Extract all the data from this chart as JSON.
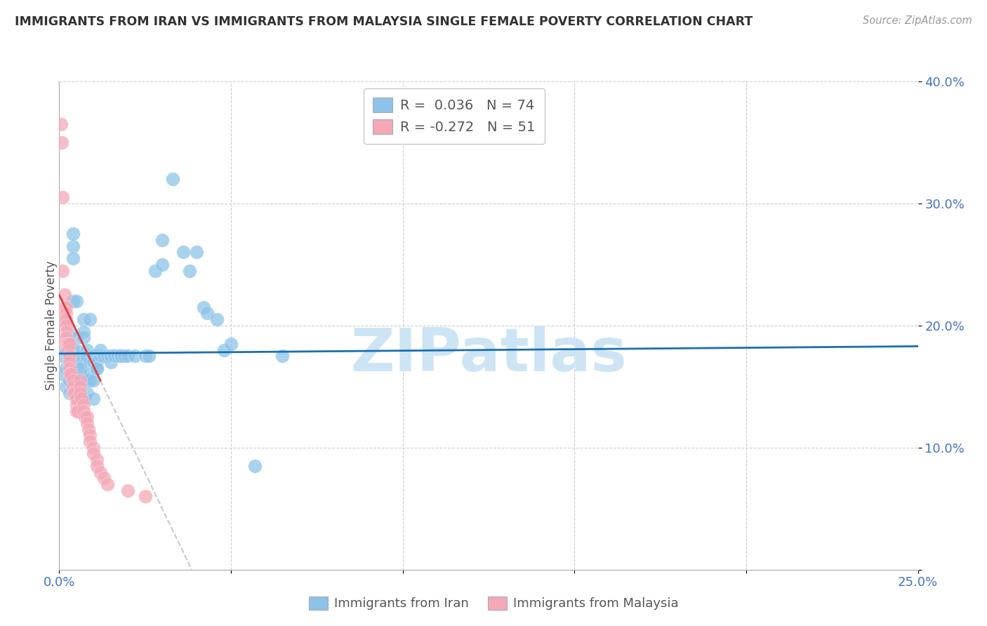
{
  "title": "IMMIGRANTS FROM IRAN VS IMMIGRANTS FROM MALAYSIA SINGLE FEMALE POVERTY CORRELATION CHART",
  "source": "Source: ZipAtlas.com",
  "ylabel_label": "Single Female Poverty",
  "x_label_bottom": "Immigrants from Iran",
  "x_label_bottom2": "Immigrants from Malaysia",
  "xlim": [
    0.0,
    0.25
  ],
  "ylim": [
    0.0,
    0.4
  ],
  "x_ticks": [
    0.0,
    0.05,
    0.1,
    0.15,
    0.2,
    0.25
  ],
  "x_tick_labels": [
    "0.0%",
    "",
    "",
    "",
    "",
    "25.0%"
  ],
  "y_ticks": [
    0.0,
    0.1,
    0.2,
    0.3,
    0.4
  ],
  "y_tick_labels": [
    "",
    "10.0%",
    "20.0%",
    "30.0%",
    "40.0%"
  ],
  "iran_R": 0.036,
  "iran_N": 74,
  "malaysia_R": -0.272,
  "malaysia_N": 51,
  "color_iran": "#8dc3e8",
  "color_malaysia": "#f4a8b8",
  "color_trendline_iran": "#1a6faf",
  "color_trendline_malaysia": "#d94040",
  "color_extrapolated": "#c8c8c8",
  "iran_points": [
    [
      0.001,
      0.175
    ],
    [
      0.001,
      0.16
    ],
    [
      0.002,
      0.18
    ],
    [
      0.002,
      0.15
    ],
    [
      0.002,
      0.165
    ],
    [
      0.003,
      0.195
    ],
    [
      0.003,
      0.175
    ],
    [
      0.003,
      0.155
    ],
    [
      0.003,
      0.145
    ],
    [
      0.004,
      0.265
    ],
    [
      0.004,
      0.255
    ],
    [
      0.004,
      0.18
    ],
    [
      0.004,
      0.275
    ],
    [
      0.004,
      0.22
    ],
    [
      0.005,
      0.18
    ],
    [
      0.005,
      0.155
    ],
    [
      0.005,
      0.14
    ],
    [
      0.005,
      0.22
    ],
    [
      0.005,
      0.19
    ],
    [
      0.006,
      0.175
    ],
    [
      0.006,
      0.165
    ],
    [
      0.006,
      0.17
    ],
    [
      0.006,
      0.165
    ],
    [
      0.007,
      0.205
    ],
    [
      0.007,
      0.19
    ],
    [
      0.007,
      0.195
    ],
    [
      0.007,
      0.14
    ],
    [
      0.008,
      0.18
    ],
    [
      0.008,
      0.155
    ],
    [
      0.008,
      0.175
    ],
    [
      0.008,
      0.155
    ],
    [
      0.008,
      0.145
    ],
    [
      0.009,
      0.205
    ],
    [
      0.009,
      0.17
    ],
    [
      0.009,
      0.155
    ],
    [
      0.009,
      0.16
    ],
    [
      0.01,
      0.175
    ],
    [
      0.01,
      0.155
    ],
    [
      0.01,
      0.14
    ],
    [
      0.01,
      0.17
    ],
    [
      0.011,
      0.17
    ],
    [
      0.011,
      0.165
    ],
    [
      0.011,
      0.165
    ],
    [
      0.012,
      0.175
    ],
    [
      0.012,
      0.18
    ],
    [
      0.013,
      0.175
    ],
    [
      0.014,
      0.175
    ],
    [
      0.015,
      0.17
    ],
    [
      0.015,
      0.175
    ],
    [
      0.015,
      0.175
    ],
    [
      0.016,
      0.175
    ],
    [
      0.016,
      0.175
    ],
    [
      0.017,
      0.175
    ],
    [
      0.018,
      0.175
    ],
    [
      0.018,
      0.175
    ],
    [
      0.019,
      0.175
    ],
    [
      0.02,
      0.175
    ],
    [
      0.022,
      0.175
    ],
    [
      0.025,
      0.175
    ],
    [
      0.026,
      0.175
    ],
    [
      0.028,
      0.245
    ],
    [
      0.03,
      0.27
    ],
    [
      0.03,
      0.25
    ],
    [
      0.033,
      0.32
    ],
    [
      0.036,
      0.26
    ],
    [
      0.038,
      0.245
    ],
    [
      0.04,
      0.26
    ],
    [
      0.042,
      0.215
    ],
    [
      0.043,
      0.21
    ],
    [
      0.046,
      0.205
    ],
    [
      0.048,
      0.18
    ],
    [
      0.05,
      0.185
    ],
    [
      0.057,
      0.085
    ],
    [
      0.065,
      0.175
    ]
  ],
  "malaysia_points": [
    [
      0.0005,
      0.365
    ],
    [
      0.0007,
      0.35
    ],
    [
      0.001,
      0.305
    ],
    [
      0.001,
      0.245
    ],
    [
      0.0015,
      0.225
    ],
    [
      0.0015,
      0.215
    ],
    [
      0.0015,
      0.205
    ],
    [
      0.002,
      0.215
    ],
    [
      0.002,
      0.21
    ],
    [
      0.002,
      0.205
    ],
    [
      0.002,
      0.2
    ],
    [
      0.002,
      0.195
    ],
    [
      0.002,
      0.19
    ],
    [
      0.002,
      0.185
    ],
    [
      0.0025,
      0.185
    ],
    [
      0.0025,
      0.18
    ],
    [
      0.003,
      0.185
    ],
    [
      0.003,
      0.175
    ],
    [
      0.003,
      0.17
    ],
    [
      0.003,
      0.165
    ],
    [
      0.003,
      0.16
    ],
    [
      0.0035,
      0.16
    ],
    [
      0.004,
      0.155
    ],
    [
      0.004,
      0.15
    ],
    [
      0.004,
      0.145
    ],
    [
      0.0045,
      0.145
    ],
    [
      0.005,
      0.14
    ],
    [
      0.005,
      0.135
    ],
    [
      0.005,
      0.13
    ],
    [
      0.0055,
      0.13
    ],
    [
      0.006,
      0.155
    ],
    [
      0.006,
      0.15
    ],
    [
      0.006,
      0.145
    ],
    [
      0.0065,
      0.14
    ],
    [
      0.007,
      0.135
    ],
    [
      0.007,
      0.13
    ],
    [
      0.0075,
      0.125
    ],
    [
      0.008,
      0.125
    ],
    [
      0.008,
      0.12
    ],
    [
      0.0085,
      0.115
    ],
    [
      0.009,
      0.11
    ],
    [
      0.009,
      0.105
    ],
    [
      0.01,
      0.1
    ],
    [
      0.01,
      0.095
    ],
    [
      0.011,
      0.09
    ],
    [
      0.011,
      0.085
    ],
    [
      0.012,
      0.08
    ],
    [
      0.013,
      0.075
    ],
    [
      0.014,
      0.07
    ],
    [
      0.02,
      0.065
    ],
    [
      0.025,
      0.06
    ]
  ],
  "watermark_text": "ZIPatlas",
  "watermark_color": "#cde4f5"
}
